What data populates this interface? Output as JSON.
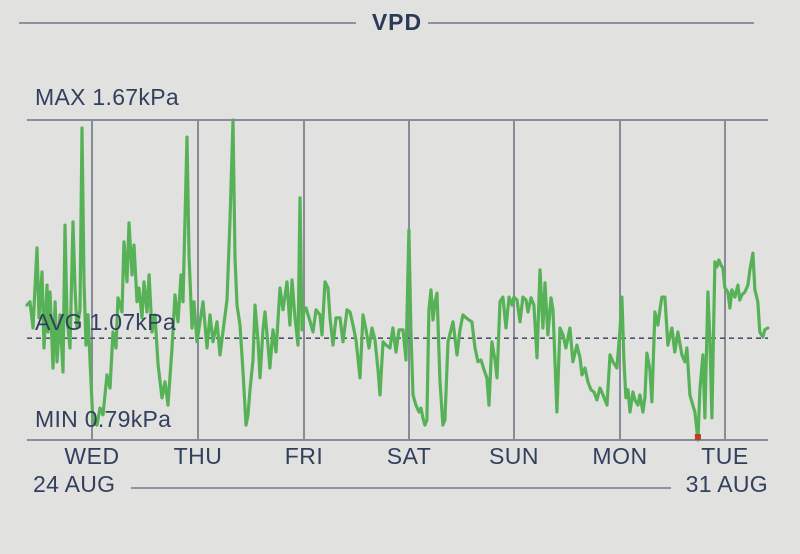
{
  "header": {
    "title": "VPD"
  },
  "chart_data": {
    "type": "line",
    "title": "VPD",
    "unit": "kPa",
    "max_label": "MAX 1.67kPa",
    "avg_label": "AVG 1.07kPa",
    "min_label": "MIN 0.79kPa",
    "max_value": 1.67,
    "avg_value": 1.07,
    "min_value": 0.79,
    "ylim": [
      0.79,
      1.67
    ],
    "x_range_days": 7,
    "day_labels": [
      "WED",
      "THU",
      "FRI",
      "SAT",
      "SUN",
      "MON",
      "TUE"
    ],
    "start_date": "24 AUG",
    "end_date": "31 AUG",
    "grid": "vertical-day-lines",
    "avg_line_style": "dashed",
    "line_color": "#57b257",
    "axis_color": "#878d97",
    "label_color": "#32405e",
    "min_marker_color": "#c03a2b",
    "min_marker_t": 6.338,
    "max_point_t": 1.946,
    "series": [
      {
        "name": "VPD (kPa)",
        "points": [
          [
            0.0,
            1.161
          ],
          [
            0.028,
            1.17
          ],
          [
            0.057,
            1.098
          ],
          [
            0.094,
            1.318
          ],
          [
            0.113,
            1.126
          ],
          [
            0.142,
            1.252
          ],
          [
            0.161,
            1.043
          ],
          [
            0.189,
            1.216
          ],
          [
            0.198,
            1.087
          ],
          [
            0.217,
            1.197
          ],
          [
            0.246,
            0.988
          ],
          [
            0.265,
            1.17
          ],
          [
            0.283,
            1.005
          ],
          [
            0.312,
            1.134
          ],
          [
            0.34,
            0.977
          ],
          [
            0.359,
            1.381
          ],
          [
            0.378,
            1.126
          ],
          [
            0.406,
            1.043
          ],
          [
            0.435,
            1.39
          ],
          [
            0.453,
            1.208
          ],
          [
            0.472,
            1.098
          ],
          [
            0.501,
            1.148
          ],
          [
            0.52,
            1.648
          ],
          [
            0.538,
            1.225
          ],
          [
            0.557,
            1.051
          ],
          [
            0.576,
            1.134
          ],
          [
            0.605,
            0.95
          ],
          [
            0.623,
            0.84
          ],
          [
            0.661,
            0.831
          ],
          [
            0.69,
            0.878
          ],
          [
            0.718,
            0.859
          ],
          [
            0.756,
            0.969
          ],
          [
            0.784,
            0.933
          ],
          [
            0.812,
            1.087
          ],
          [
            0.841,
            1.043
          ],
          [
            0.86,
            1.181
          ],
          [
            0.897,
            1.142
          ],
          [
            0.916,
            1.335
          ],
          [
            0.945,
            1.225
          ],
          [
            0.964,
            1.387
          ],
          [
            0.992,
            1.244
          ],
          [
            1.011,
            1.326
          ],
          [
            1.039,
            1.17
          ],
          [
            1.058,
            1.208
          ],
          [
            1.086,
            1.126
          ],
          [
            1.105,
            1.225
          ],
          [
            1.134,
            1.142
          ],
          [
            1.153,
            1.244
          ],
          [
            1.181,
            1.087
          ],
          [
            1.209,
            1.134
          ],
          [
            1.238,
            0.996
          ],
          [
            1.275,
            0.906
          ],
          [
            1.304,
            0.95
          ],
          [
            1.332,
            0.886
          ],
          [
            1.37,
            1.043
          ],
          [
            1.398,
            1.189
          ],
          [
            1.426,
            1.115
          ],
          [
            1.455,
            1.244
          ],
          [
            1.474,
            1.17
          ],
          [
            1.511,
            1.623
          ],
          [
            1.53,
            1.299
          ],
          [
            1.559,
            1.098
          ],
          [
            1.578,
            1.17
          ],
          [
            1.606,
            1.06
          ],
          [
            1.634,
            1.115
          ],
          [
            1.663,
            1.17
          ],
          [
            1.7,
            1.043
          ],
          [
            1.729,
            1.134
          ],
          [
            1.757,
            1.06
          ],
          [
            1.795,
            1.115
          ],
          [
            1.823,
            1.024
          ],
          [
            1.851,
            1.087
          ],
          [
            1.889,
            1.175
          ],
          [
            1.918,
            1.395
          ],
          [
            1.946,
            1.67
          ],
          [
            1.965,
            1.291
          ],
          [
            1.984,
            1.161
          ],
          [
            2.012,
            1.106
          ],
          [
            2.04,
            0.983
          ],
          [
            2.069,
            0.831
          ],
          [
            2.088,
            0.859
          ],
          [
            2.107,
            0.928
          ],
          [
            2.135,
            1.01
          ],
          [
            2.154,
            1.161
          ],
          [
            2.182,
            1.065
          ],
          [
            2.201,
            0.961
          ],
          [
            2.229,
            1.093
          ],
          [
            2.248,
            1.142
          ],
          [
            2.277,
            1.051
          ],
          [
            2.295,
            0.988
          ],
          [
            2.324,
            1.093
          ],
          [
            2.352,
            1.032
          ],
          [
            2.39,
            1.208
          ],
          [
            2.418,
            1.148
          ],
          [
            2.456,
            1.225
          ],
          [
            2.484,
            1.106
          ],
          [
            2.503,
            1.23
          ],
          [
            2.532,
            1.126
          ],
          [
            2.56,
            1.051
          ],
          [
            2.579,
            1.456
          ],
          [
            2.598,
            1.093
          ],
          [
            2.617,
            1.148
          ],
          [
            2.636,
            1.153
          ],
          [
            2.664,
            1.126
          ],
          [
            2.702,
            1.087
          ],
          [
            2.73,
            1.148
          ],
          [
            2.768,
            1.134
          ],
          [
            2.787,
            1.079
          ],
          [
            2.815,
            1.225
          ],
          [
            2.843,
            1.208
          ],
          [
            2.862,
            1.126
          ],
          [
            2.891,
            1.051
          ],
          [
            2.919,
            1.126
          ],
          [
            2.957,
            1.126
          ],
          [
            2.985,
            1.06
          ],
          [
            3.023,
            1.148
          ],
          [
            3.051,
            1.142
          ],
          [
            3.08,
            1.106
          ],
          [
            3.108,
            1.065
          ],
          [
            3.146,
            0.961
          ],
          [
            3.174,
            1.134
          ],
          [
            3.202,
            1.093
          ],
          [
            3.231,
            1.043
          ],
          [
            3.259,
            1.098
          ],
          [
            3.287,
            1.065
          ],
          [
            3.316,
            0.983
          ],
          [
            3.335,
            0.914
          ],
          [
            3.363,
            1.06
          ],
          [
            3.391,
            1.051
          ],
          [
            3.429,
            1.043
          ],
          [
            3.457,
            1.098
          ],
          [
            3.486,
            1.032
          ],
          [
            3.514,
            1.093
          ],
          [
            3.552,
            1.093
          ],
          [
            3.58,
            1.01
          ],
          [
            3.608,
            1.368
          ],
          [
            3.627,
            1.093
          ],
          [
            3.646,
            0.914
          ],
          [
            3.674,
            0.886
          ],
          [
            3.703,
            0.867
          ],
          [
            3.722,
            0.878
          ],
          [
            3.74,
            0.851
          ],
          [
            3.759,
            0.831
          ],
          [
            3.778,
            0.845
          ],
          [
            3.797,
            1.148
          ],
          [
            3.816,
            1.203
          ],
          [
            3.835,
            1.12
          ],
          [
            3.854,
            1.17
          ],
          [
            3.873,
            1.194
          ],
          [
            3.901,
            0.955
          ],
          [
            3.929,
            0.831
          ],
          [
            3.948,
            0.845
          ],
          [
            3.977,
            1.06
          ],
          [
            4.005,
            1.093
          ],
          [
            4.024,
            1.115
          ],
          [
            4.062,
            1.024
          ],
          [
            4.09,
            1.093
          ],
          [
            4.118,
            1.134
          ],
          [
            4.147,
            1.126
          ],
          [
            4.175,
            1.12
          ],
          [
            4.203,
            1.115
          ],
          [
            4.232,
            1.043
          ],
          [
            4.26,
            1.005
          ],
          [
            4.289,
            1.01
          ],
          [
            4.317,
            0.983
          ],
          [
            4.345,
            0.961
          ],
          [
            4.364,
            0.886
          ],
          [
            4.392,
            1.06
          ],
          [
            4.421,
            1.01
          ],
          [
            4.44,
            0.961
          ],
          [
            4.468,
            1.17
          ],
          [
            4.496,
            1.183
          ],
          [
            4.525,
            1.098
          ],
          [
            4.553,
            1.183
          ],
          [
            4.582,
            1.161
          ],
          [
            4.6,
            1.183
          ],
          [
            4.629,
            1.175
          ],
          [
            4.657,
            1.115
          ],
          [
            4.685,
            1.183
          ],
          [
            4.714,
            1.175
          ],
          [
            4.733,
            1.142
          ],
          [
            4.761,
            1.181
          ],
          [
            4.789,
            1.161
          ],
          [
            4.818,
            1.016
          ],
          [
            4.846,
            1.258
          ],
          [
            4.874,
            1.098
          ],
          [
            4.893,
            1.222
          ],
          [
            4.921,
            1.079
          ],
          [
            4.95,
            1.181
          ],
          [
            4.969,
            1.148
          ],
          [
            5.006,
            0.867
          ],
          [
            5.035,
            1.098
          ],
          [
            5.063,
            1.079
          ],
          [
            5.091,
            1.043
          ],
          [
            5.129,
            1.098
          ],
          [
            5.157,
            1.005
          ],
          [
            5.195,
            1.051
          ],
          [
            5.224,
            1.016
          ],
          [
            5.243,
            0.969
          ],
          [
            5.271,
            0.988
          ],
          [
            5.299,
            0.95
          ],
          [
            5.328,
            0.928
          ],
          [
            5.356,
            0.922
          ],
          [
            5.384,
            0.9
          ],
          [
            5.413,
            0.933
          ],
          [
            5.441,
            0.914
          ],
          [
            5.479,
            0.886
          ],
          [
            5.507,
            1.024
          ],
          [
            5.535,
            1.005
          ],
          [
            5.573,
            0.988
          ],
          [
            5.602,
            1.093
          ],
          [
            5.62,
            1.183
          ],
          [
            5.639,
            1.01
          ],
          [
            5.658,
            0.906
          ],
          [
            5.677,
            0.928
          ],
          [
            5.696,
            0.867
          ],
          [
            5.724,
            0.922
          ],
          [
            5.743,
            0.9
          ],
          [
            5.771,
            0.886
          ],
          [
            5.79,
            0.914
          ],
          [
            5.818,
            0.867
          ],
          [
            5.837,
            0.906
          ],
          [
            5.856,
            1.029
          ],
          [
            5.884,
            0.983
          ],
          [
            5.903,
            0.895
          ],
          [
            5.932,
            1.142
          ],
          [
            5.96,
            1.106
          ],
          [
            5.979,
            1.148
          ],
          [
            5.998,
            1.183
          ],
          [
            6.026,
            1.183
          ],
          [
            6.054,
            1.051
          ],
          [
            6.092,
            1.098
          ],
          [
            6.12,
            1.032
          ],
          [
            6.149,
            1.087
          ],
          [
            6.187,
            1.024
          ],
          [
            6.215,
            1.005
          ],
          [
            6.234,
            1.043
          ],
          [
            6.262,
            0.914
          ],
          [
            6.29,
            0.886
          ],
          [
            6.309,
            0.867
          ],
          [
            6.338,
            0.79
          ],
          [
            6.357,
            0.928
          ],
          [
            6.385,
            1.024
          ],
          [
            6.404,
            0.851
          ],
          [
            6.432,
            1.197
          ],
          [
            6.451,
            1.065
          ],
          [
            6.47,
            0.851
          ],
          [
            6.498,
            1.28
          ],
          [
            6.517,
            1.266
          ],
          [
            6.536,
            1.285
          ],
          [
            6.555,
            1.271
          ],
          [
            6.574,
            1.263
          ],
          [
            6.593,
            1.208
          ],
          [
            6.621,
            1.197
          ],
          [
            6.64,
            1.153
          ],
          [
            6.659,
            1.203
          ],
          [
            6.687,
            1.183
          ],
          [
            6.716,
            1.216
          ],
          [
            6.734,
            1.175
          ],
          [
            6.753,
            1.189
          ],
          [
            6.782,
            1.197
          ],
          [
            6.81,
            1.216
          ],
          [
            6.829,
            1.258
          ],
          [
            6.857,
            1.304
          ],
          [
            6.876,
            1.203
          ],
          [
            6.904,
            1.17
          ],
          [
            6.923,
            1.087
          ],
          [
            6.951,
            1.073
          ],
          [
            6.97,
            1.093
          ],
          [
            6.998,
            1.098
          ]
        ]
      }
    ]
  }
}
